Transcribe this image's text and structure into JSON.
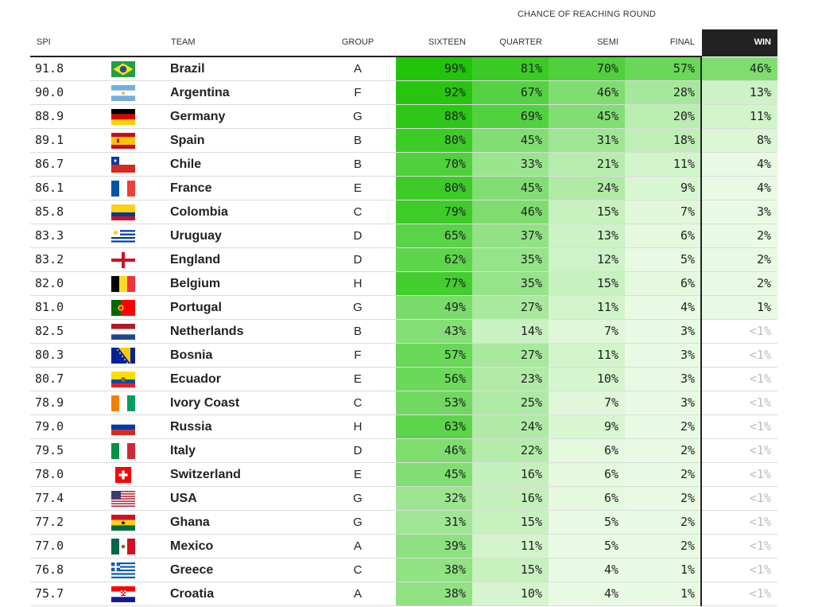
{
  "header": {
    "supra": "CHANCE OF REACHING ROUND",
    "spi": "SPI",
    "team": "TEAM",
    "group": "GROUP",
    "rounds": [
      "SIXTEEN",
      "QUARTER",
      "SEMI",
      "FINAL",
      "WIN"
    ]
  },
  "colors": {
    "scale_high": "#22c40b",
    "scale_low": "#e9fae4",
    "text": "#222222",
    "muted": "#bbbbbb",
    "win_header_bg": "#222222"
  },
  "chart_data": {
    "type": "table",
    "columns": [
      "SPI",
      "TEAM",
      "GROUP",
      "SIXTEEN",
      "QUARTER",
      "SEMI",
      "FINAL",
      "WIN"
    ],
    "rows": [
      {
        "spi": "91.8",
        "team": "Brazil",
        "flag": "brazil-flag",
        "group": "A",
        "pct": [
          "99%",
          "81%",
          "70%",
          "57%",
          "46%"
        ]
      },
      {
        "spi": "90.0",
        "team": "Argentina",
        "flag": "argentina-flag",
        "group": "F",
        "pct": [
          "92%",
          "67%",
          "46%",
          "28%",
          "13%"
        ]
      },
      {
        "spi": "88.9",
        "team": "Germany",
        "flag": "germany-flag",
        "group": "G",
        "pct": [
          "88%",
          "69%",
          "45%",
          "20%",
          "11%"
        ]
      },
      {
        "spi": "89.1",
        "team": "Spain",
        "flag": "spain-flag",
        "group": "B",
        "pct": [
          "80%",
          "45%",
          "31%",
          "18%",
          "8%"
        ]
      },
      {
        "spi": "86.7",
        "team": "Chile",
        "flag": "chile-flag",
        "group": "B",
        "pct": [
          "70%",
          "33%",
          "21%",
          "11%",
          "4%"
        ]
      },
      {
        "spi": "86.1",
        "team": "France",
        "flag": "france-flag",
        "group": "E",
        "pct": [
          "80%",
          "45%",
          "24%",
          "9%",
          "4%"
        ]
      },
      {
        "spi": "85.8",
        "team": "Colombia",
        "flag": "colombia-flag",
        "group": "C",
        "pct": [
          "79%",
          "46%",
          "15%",
          "7%",
          "3%"
        ]
      },
      {
        "spi": "83.3",
        "team": "Uruguay",
        "flag": "uruguay-flag",
        "group": "D",
        "pct": [
          "65%",
          "37%",
          "13%",
          "6%",
          "2%"
        ]
      },
      {
        "spi": "83.2",
        "team": "England",
        "flag": "england-flag",
        "group": "D",
        "pct": [
          "62%",
          "35%",
          "12%",
          "5%",
          "2%"
        ]
      },
      {
        "spi": "82.0",
        "team": "Belgium",
        "flag": "belgium-flag",
        "group": "H",
        "pct": [
          "77%",
          "35%",
          "15%",
          "6%",
          "2%"
        ]
      },
      {
        "spi": "81.0",
        "team": "Portugal",
        "flag": "portugal-flag",
        "group": "G",
        "pct": [
          "49%",
          "27%",
          "11%",
          "4%",
          "1%"
        ]
      },
      {
        "spi": "82.5",
        "team": "Netherlands",
        "flag": "netherlands-flag",
        "group": "B",
        "pct": [
          "43%",
          "14%",
          "7%",
          "3%",
          "<1%"
        ]
      },
      {
        "spi": "80.3",
        "team": "Bosnia",
        "flag": "bosnia-flag",
        "group": "F",
        "pct": [
          "57%",
          "27%",
          "11%",
          "3%",
          "<1%"
        ]
      },
      {
        "spi": "80.7",
        "team": "Ecuador",
        "flag": "ecuador-flag",
        "group": "E",
        "pct": [
          "56%",
          "23%",
          "10%",
          "3%",
          "<1%"
        ]
      },
      {
        "spi": "78.9",
        "team": "Ivory Coast",
        "flag": "ivory-coast-flag",
        "group": "C",
        "pct": [
          "53%",
          "25%",
          "7%",
          "3%",
          "<1%"
        ]
      },
      {
        "spi": "79.0",
        "team": "Russia",
        "flag": "russia-flag",
        "group": "H",
        "pct": [
          "63%",
          "24%",
          "9%",
          "2%",
          "<1%"
        ]
      },
      {
        "spi": "79.5",
        "team": "Italy",
        "flag": "italy-flag",
        "group": "D",
        "pct": [
          "46%",
          "22%",
          "6%",
          "2%",
          "<1%"
        ]
      },
      {
        "spi": "78.0",
        "team": "Switzerland",
        "flag": "switzerland-flag",
        "group": "E",
        "pct": [
          "45%",
          "16%",
          "6%",
          "2%",
          "<1%"
        ]
      },
      {
        "spi": "77.4",
        "team": "USA",
        "flag": "usa-flag",
        "group": "G",
        "pct": [
          "32%",
          "16%",
          "6%",
          "2%",
          "<1%"
        ]
      },
      {
        "spi": "77.2",
        "team": "Ghana",
        "flag": "ghana-flag",
        "group": "G",
        "pct": [
          "31%",
          "15%",
          "5%",
          "2%",
          "<1%"
        ]
      },
      {
        "spi": "77.0",
        "team": "Mexico",
        "flag": "mexico-flag",
        "group": "A",
        "pct": [
          "39%",
          "11%",
          "5%",
          "2%",
          "<1%"
        ]
      },
      {
        "spi": "76.8",
        "team": "Greece",
        "flag": "greece-flag",
        "group": "C",
        "pct": [
          "38%",
          "15%",
          "4%",
          "1%",
          "<1%"
        ]
      },
      {
        "spi": "75.7",
        "team": "Croatia",
        "flag": "croatia-flag",
        "group": "A",
        "pct": [
          "38%",
          "10%",
          "4%",
          "1%",
          "<1%"
        ]
      }
    ]
  }
}
